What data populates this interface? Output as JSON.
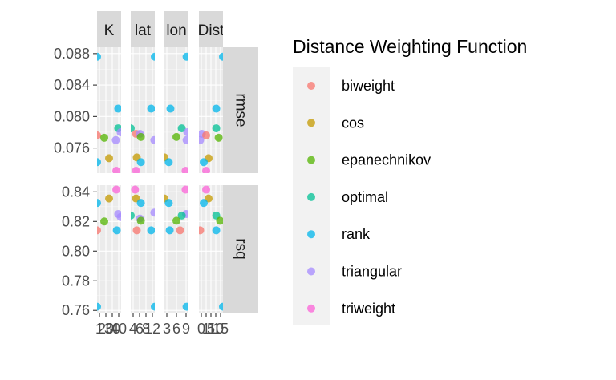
{
  "chart_data": {
    "type": "scatter",
    "facets": {
      "columns": [
        "K",
        "lat",
        "lon",
        "Dist"
      ],
      "rows": [
        "rmse",
        "rsq"
      ]
    },
    "x_tick_labels": {
      "K": [
        "1",
        "20",
        "30",
        "40"
      ],
      "lat": [
        "4",
        "6",
        "8",
        "12"
      ],
      "lon": [
        "3",
        "6",
        "9"
      ],
      "Dist": [
        "0",
        "1",
        "5",
        "10",
        "15"
      ]
    },
    "y_axes": {
      "rmse": {
        "ylim": [
          0.0728,
          0.0888
        ],
        "ticks": [
          "0.076",
          "0.080",
          "0.084",
          "0.088"
        ]
      },
      "rsq": {
        "ylim": [
          0.7585,
          0.8445
        ],
        "ticks": [
          "0.76",
          "0.78",
          "0.80",
          "0.82",
          "0.84"
        ]
      }
    },
    "legend": {
      "title": "Distance Weighting Function",
      "position": "right",
      "entries": [
        "biweight",
        "cos",
        "epanechnikov",
        "optimal",
        "rank",
        "triangular",
        "triweight"
      ]
    },
    "series_colors": {
      "biweight": "#F8766D",
      "cos": "#C49A00",
      "epanechnikov": "#53B400",
      "optimal": "#00C094",
      "rank": "#00B6EB",
      "triangular": "#A58AFF",
      "triweight": "#FB61D7"
    },
    "points": [
      {
        "col": "K",
        "row": "rmse",
        "series": "rank",
        "x": 0.0,
        "y": 0.0876
      },
      {
        "col": "K",
        "row": "rmse",
        "series": "biweight",
        "x": 0.0,
        "y": 0.0776
      },
      {
        "col": "K",
        "row": "rmse",
        "series": "rank",
        "x": 0.0,
        "y": 0.0742
      },
      {
        "col": "K",
        "row": "rmse",
        "series": "epanechnikov",
        "x": 0.3,
        "y": 0.0773
      },
      {
        "col": "K",
        "row": "rmse",
        "series": "cos",
        "x": 0.5,
        "y": 0.0747
      },
      {
        "col": "K",
        "row": "rmse",
        "series": "rank",
        "x": 0.88,
        "y": 0.081
      },
      {
        "col": "K",
        "row": "rmse",
        "series": "optimal",
        "x": 0.88,
        "y": 0.0785
      },
      {
        "col": "K",
        "row": "rmse",
        "series": "triangular",
        "x": 0.98,
        "y": 0.078
      },
      {
        "col": "K",
        "row": "rmse",
        "series": "triangular",
        "x": 0.78,
        "y": 0.077
      },
      {
        "col": "K",
        "row": "rmse",
        "series": "triweight",
        "x": 0.8,
        "y": 0.0731
      },
      {
        "col": "K",
        "row": "rsq",
        "series": "rank",
        "x": 0.0,
        "y": 0.8325
      },
      {
        "col": "K",
        "row": "rsq",
        "series": "biweight",
        "x": 0.0,
        "y": 0.814
      },
      {
        "col": "K",
        "row": "rsq",
        "series": "rank",
        "x": 0.0,
        "y": 0.7625
      },
      {
        "col": "K",
        "row": "rsq",
        "series": "epanechnikov",
        "x": 0.3,
        "y": 0.82
      },
      {
        "col": "K",
        "row": "rsq",
        "series": "cos",
        "x": 0.5,
        "y": 0.8355
      },
      {
        "col": "K",
        "row": "rsq",
        "series": "triweight",
        "x": 0.8,
        "y": 0.8415
      },
      {
        "col": "K",
        "row": "rsq",
        "series": "triangular",
        "x": 0.88,
        "y": 0.825
      },
      {
        "col": "K",
        "row": "rsq",
        "series": "triangular",
        "x": 0.98,
        "y": 0.823
      },
      {
        "col": "K",
        "row": "rsq",
        "series": "rank",
        "x": 0.82,
        "y": 0.814
      },
      {
        "col": "lat",
        "row": "rmse",
        "series": "rank",
        "x": 1.0,
        "y": 0.0876
      },
      {
        "col": "lat",
        "row": "rmse",
        "series": "optimal",
        "x": 0.0,
        "y": 0.0785
      },
      {
        "col": "lat",
        "row": "rmse",
        "series": "biweight",
        "x": 0.22,
        "y": 0.0778
      },
      {
        "col": "lat",
        "row": "rmse",
        "series": "triangular",
        "x": 0.38,
        "y": 0.0778
      },
      {
        "col": "lat",
        "row": "rmse",
        "series": "epanechnikov",
        "x": 0.42,
        "y": 0.0774
      },
      {
        "col": "lat",
        "row": "rmse",
        "series": "cos",
        "x": 0.25,
        "y": 0.0748
      },
      {
        "col": "lat",
        "row": "rmse",
        "series": "rank",
        "x": 0.42,
        "y": 0.0742
      },
      {
        "col": "lat",
        "row": "rmse",
        "series": "rank",
        "x": 0.85,
        "y": 0.081
      },
      {
        "col": "lat",
        "row": "rmse",
        "series": "triangular",
        "x": 0.98,
        "y": 0.077
      },
      {
        "col": "lat",
        "row": "rmse",
        "series": "triweight",
        "x": 0.22,
        "y": 0.0731
      },
      {
        "col": "lat",
        "row": "rsq",
        "series": "triweight",
        "x": 0.18,
        "y": 0.8415
      },
      {
        "col": "lat",
        "row": "rsq",
        "series": "cos",
        "x": 0.22,
        "y": 0.8355
      },
      {
        "col": "lat",
        "row": "rsq",
        "series": "rank",
        "x": 0.42,
        "y": 0.8325
      },
      {
        "col": "lat",
        "row": "rsq",
        "series": "optimal",
        "x": 0.0,
        "y": 0.824
      },
      {
        "col": "lat",
        "row": "rsq",
        "series": "triangular",
        "x": 0.38,
        "y": 0.822
      },
      {
        "col": "lat",
        "row": "rsq",
        "series": "epanechnikov",
        "x": 0.42,
        "y": 0.8205
      },
      {
        "col": "lat",
        "row": "rsq",
        "series": "triangular",
        "x": 0.98,
        "y": 0.826
      },
      {
        "col": "lat",
        "row": "rsq",
        "series": "biweight",
        "x": 0.25,
        "y": 0.814
      },
      {
        "col": "lat",
        "row": "rsq",
        "series": "rank",
        "x": 0.85,
        "y": 0.814
      },
      {
        "col": "lat",
        "row": "rsq",
        "series": "rank",
        "x": 1.0,
        "y": 0.7625
      },
      {
        "col": "lon",
        "row": "rmse",
        "series": "rank",
        "x": 0.92,
        "y": 0.0876
      },
      {
        "col": "lon",
        "row": "rmse",
        "series": "rank",
        "x": 0.25,
        "y": 0.081
      },
      {
        "col": "lon",
        "row": "rmse",
        "series": "optimal",
        "x": 0.72,
        "y": 0.0785
      },
      {
        "col": "lon",
        "row": "rmse",
        "series": "triangular",
        "x": 0.95,
        "y": 0.078
      },
      {
        "col": "lon",
        "row": "rmse",
        "series": "epanechnikov",
        "x": 0.5,
        "y": 0.0774
      },
      {
        "col": "lon",
        "row": "rmse",
        "series": "triangular",
        "x": 0.92,
        "y": 0.077
      },
      {
        "col": "lon",
        "row": "rmse",
        "series": "cos",
        "x": 0.0,
        "y": 0.0748
      },
      {
        "col": "lon",
        "row": "rmse",
        "series": "rank",
        "x": 0.18,
        "y": 0.0742
      },
      {
        "col": "lon",
        "row": "rmse",
        "series": "triweight",
        "x": 0.88,
        "y": 0.0731
      },
      {
        "col": "lon",
        "row": "rsq",
        "series": "triweight",
        "x": 0.88,
        "y": 0.8415
      },
      {
        "col": "lon",
        "row": "rsq",
        "series": "cos",
        "x": 0.0,
        "y": 0.8355
      },
      {
        "col": "lon",
        "row": "rsq",
        "series": "rank",
        "x": 0.18,
        "y": 0.8325
      },
      {
        "col": "lon",
        "row": "rsq",
        "series": "triangular",
        "x": 0.9,
        "y": 0.825
      },
      {
        "col": "lon",
        "row": "rsq",
        "series": "optimal",
        "x": 0.72,
        "y": 0.824
      },
      {
        "col": "lon",
        "row": "rsq",
        "series": "epanechnikov",
        "x": 0.5,
        "y": 0.8205
      },
      {
        "col": "lon",
        "row": "rsq",
        "series": "rank",
        "x": 0.22,
        "y": 0.814
      },
      {
        "col": "lon",
        "row": "rsq",
        "series": "biweight",
        "x": 0.65,
        "y": 0.814
      },
      {
        "col": "lon",
        "row": "rsq",
        "series": "rank",
        "x": 0.92,
        "y": 0.7625
      },
      {
        "col": "Dist",
        "row": "rmse",
        "series": "rank",
        "x": 1.0,
        "y": 0.0876
      },
      {
        "col": "Dist",
        "row": "rmse",
        "series": "rank",
        "x": 0.72,
        "y": 0.081
      },
      {
        "col": "Dist",
        "row": "rmse",
        "series": "optimal",
        "x": 0.72,
        "y": 0.0785
      },
      {
        "col": "Dist",
        "row": "rmse",
        "series": "triangular",
        "x": 0.12,
        "y": 0.0778
      },
      {
        "col": "Dist",
        "row": "rmse",
        "series": "biweight",
        "x": 0.3,
        "y": 0.0776
      },
      {
        "col": "Dist",
        "row": "rmse",
        "series": "epanechnikov",
        "x": 0.82,
        "y": 0.0773
      },
      {
        "col": "Dist",
        "row": "rmse",
        "series": "triangular",
        "x": 0.05,
        "y": 0.077
      },
      {
        "col": "Dist",
        "row": "rmse",
        "series": "cos",
        "x": 0.4,
        "y": 0.0747
      },
      {
        "col": "Dist",
        "row": "rmse",
        "series": "rank",
        "x": 0.2,
        "y": 0.0742
      },
      {
        "col": "Dist",
        "row": "rmse",
        "series": "triweight",
        "x": 0.3,
        "y": 0.0731
      },
      {
        "col": "Dist",
        "row": "rsq",
        "series": "triweight",
        "x": 0.3,
        "y": 0.8415
      },
      {
        "col": "Dist",
        "row": "rsq",
        "series": "cos",
        "x": 0.4,
        "y": 0.8355
      },
      {
        "col": "Dist",
        "row": "rsq",
        "series": "rank",
        "x": 0.2,
        "y": 0.8325
      },
      {
        "col": "Dist",
        "row": "rsq",
        "series": "optimal",
        "x": 0.72,
        "y": 0.824
      },
      {
        "col": "Dist",
        "row": "rsq",
        "series": "epanechnikov",
        "x": 0.88,
        "y": 0.8205
      },
      {
        "col": "Dist",
        "row": "rsq",
        "series": "biweight",
        "x": 0.05,
        "y": 0.814
      },
      {
        "col": "Dist",
        "row": "rsq",
        "series": "rank",
        "x": 0.72,
        "y": 0.814
      },
      {
        "col": "Dist",
        "row": "rsq",
        "series": "rank",
        "x": 1.0,
        "y": 0.7625
      }
    ]
  }
}
